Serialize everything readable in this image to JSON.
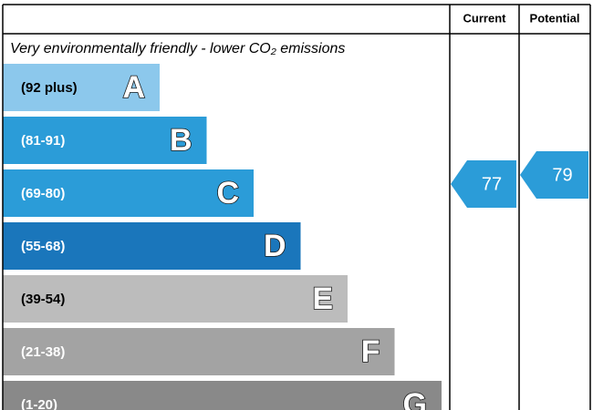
{
  "header": {
    "current": "Current",
    "potential": "Potential"
  },
  "subtitle": "Very environmentally friendly - lower CO₂ emissions",
  "bands": [
    {
      "range": "(92 plus)",
      "letter": "A",
      "color": "#8cc8ec"
    },
    {
      "range": "(81-91)",
      "letter": "B",
      "color": "#2b9cd8"
    },
    {
      "range": "(69-80)",
      "letter": "C",
      "color": "#2b9cd8"
    },
    {
      "range": "(55-68)",
      "letter": "D",
      "color": "#1a76bb"
    },
    {
      "range": "(39-54)",
      "letter": "E",
      "color": "#bcbcbc"
    },
    {
      "range": "(21-38)",
      "letter": "F",
      "color": "#a3a3a3"
    },
    {
      "range": "(1-20)",
      "letter": "G",
      "color": "#898989"
    }
  ],
  "current": {
    "value": 77,
    "color": "#2b9cd8"
  },
  "potential": {
    "value": 79,
    "color": "#2b9cd8"
  }
}
